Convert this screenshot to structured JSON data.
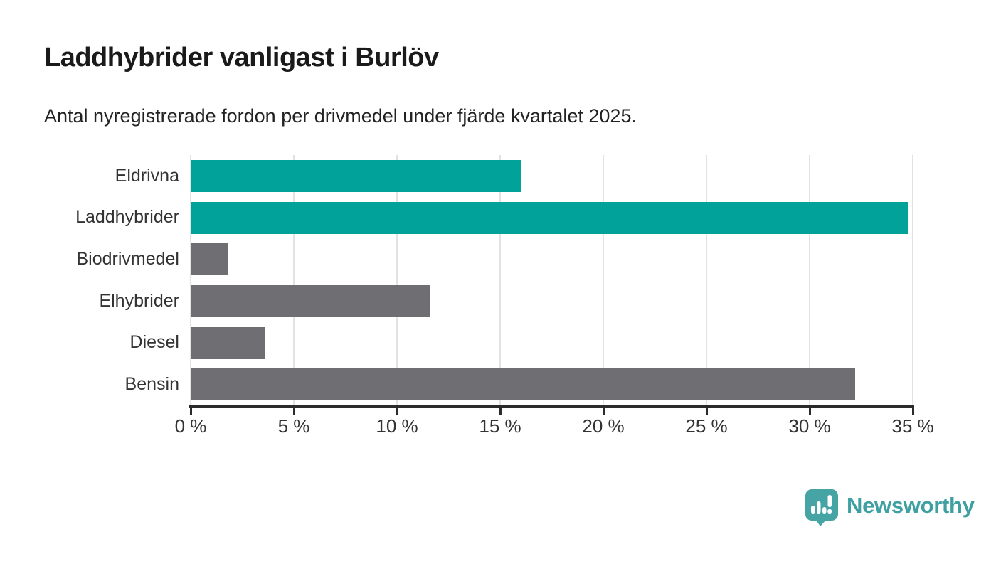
{
  "chart_data": {
    "type": "bar",
    "orientation": "horizontal",
    "title": "Laddhybrider vanligast i Burlöv",
    "subtitle": "Antal nyregistrerade fordon per drivmedel under fjärde kvartalet 2025.",
    "categories": [
      "Eldrivna",
      "Laddhybrider",
      "Biodrivmedel",
      "Elhybrider",
      "Diesel",
      "Bensin"
    ],
    "values": [
      16.0,
      34.8,
      1.8,
      11.6,
      3.6,
      32.2
    ],
    "unit": "%",
    "xlim": [
      0,
      35
    ],
    "x_ticks": [
      0,
      5,
      10,
      15,
      20,
      25,
      30,
      35
    ],
    "x_tick_labels": [
      "0 %",
      "5 %",
      "10 %",
      "15 %",
      "20 %",
      "25 %",
      "30 %",
      "35 %"
    ],
    "grid": true,
    "legend": "none",
    "bar_colors": [
      "#00a29a",
      "#00a29a",
      "#6e6e73",
      "#6e6e73",
      "#6e6e73",
      "#6e6e73"
    ],
    "highlight_color": "#00a29a",
    "default_color": "#6e6e73"
  },
  "colors": {
    "grid": "#e2e2e2",
    "axis": "#2b2b2b",
    "tick_text": "#333333",
    "logo": "#3fa0a1",
    "logo_icon": "#47a4a5"
  },
  "logo": {
    "text": "Newsworthy",
    "icon": "newsworthy-bubble-chart-icon"
  }
}
